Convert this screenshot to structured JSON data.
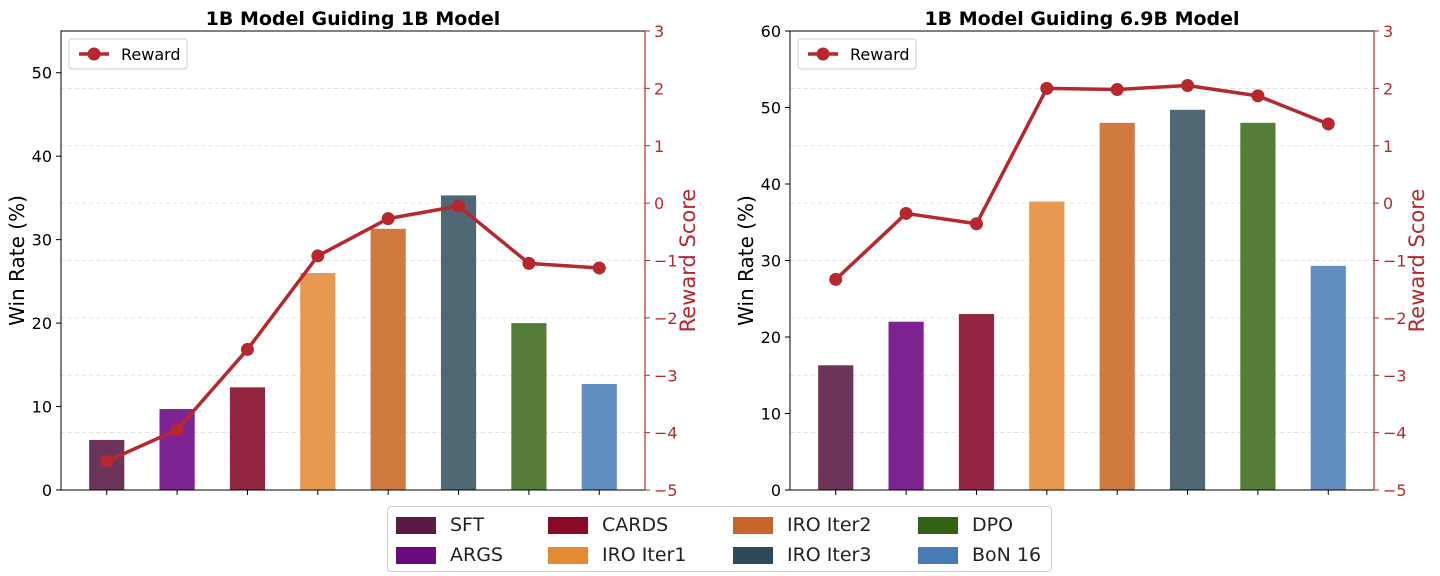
{
  "chart_data": [
    {
      "type": "bar",
      "title": "1B Model Guiding 1B Model",
      "ylabel": "Win Rate (%)",
      "y2label": "Reward Score",
      "ylim": [
        0,
        55
      ],
      "y2lim": [
        -5,
        3
      ],
      "yticks": [
        0,
        10,
        20,
        30,
        40,
        50
      ],
      "y2ticks": [
        -5,
        -4,
        -3,
        -2,
        -1,
        0,
        1,
        2,
        3
      ],
      "categories": [
        "SFT",
        "ARGS",
        "CARDS",
        "IRO Iter1",
        "IRO Iter2",
        "IRO Iter3",
        "DPO",
        "BoN 16"
      ],
      "values": [
        6.0,
        9.7,
        12.3,
        26.0,
        31.3,
        35.3,
        20.0,
        12.7
      ],
      "reward_series": {
        "name": "Reward",
        "values": [
          -4.5,
          -3.95,
          -2.55,
          -0.92,
          -0.27,
          -0.05,
          -1.05,
          -1.13
        ]
      },
      "legend": "upper-left",
      "grid": true
    },
    {
      "type": "bar",
      "title": "1B Model Guiding 6.9B Model",
      "ylabel": "Win Rate (%)",
      "y2label": "Reward Score",
      "ylim": [
        0,
        60
      ],
      "y2lim": [
        -5,
        3
      ],
      "yticks": [
        0,
        10,
        20,
        30,
        40,
        50,
        60
      ],
      "y2ticks": [
        -5,
        -4,
        -3,
        -2,
        -1,
        0,
        1,
        2,
        3
      ],
      "categories": [
        "SFT",
        "ARGS",
        "CARDS",
        "IRO Iter1",
        "IRO Iter2",
        "IRO Iter3",
        "DPO",
        "BoN 16"
      ],
      "values": [
        16.3,
        22.0,
        23.0,
        37.7,
        48.0,
        49.7,
        48.0,
        29.3
      ],
      "reward_series": {
        "name": "Reward",
        "values": [
          -1.33,
          -0.18,
          -0.36,
          2.0,
          1.98,
          2.05,
          1.87,
          1.38
        ]
      },
      "legend": "upper-left",
      "grid": true
    }
  ],
  "legend": {
    "items": [
      {
        "label": "SFT",
        "color": "#5a1a42"
      },
      {
        "label": "ARGS",
        "color": "#6b0a7d"
      },
      {
        "label": "CARDS",
        "color": "#870a28"
      },
      {
        "label": "IRO Iter1",
        "color": "#e48b33"
      },
      {
        "label": "IRO Iter2",
        "color": "#c86528"
      },
      {
        "label": "IRO Iter3",
        "color": "#2e4a58"
      },
      {
        "label": "DPO",
        "color": "#346215"
      },
      {
        "label": "BoN 16",
        "color": "#4a7cb4"
      }
    ]
  },
  "colors": {
    "bars": [
      "#6c3458",
      "#7e2492",
      "#932540",
      "#e8994f",
      "#d07a40",
      "#4e6874",
      "#567d37",
      "#628ec0"
    ],
    "reward": "#b7282e"
  }
}
